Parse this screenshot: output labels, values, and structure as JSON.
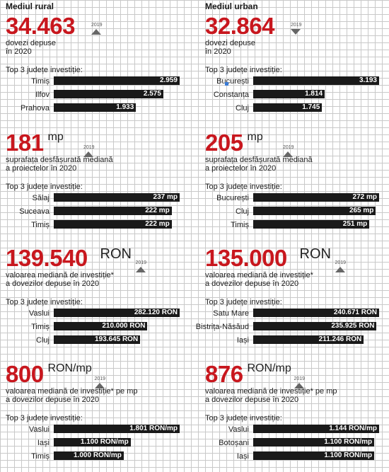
{
  "headers": {
    "left": "Mediul rural",
    "right": "Mediul urban"
  },
  "top3_label": "Top 3 județe investiție:",
  "year_ref": "2019",
  "chart_data": [
    {
      "type": "bar",
      "section": "rural",
      "metric": "dovezi depuse",
      "value": "34.463",
      "unit": "",
      "trend": "up",
      "desc1": "dovezi depuse",
      "desc2": "în 2020",
      "categories": [
        "Timiș",
        "Ilfov",
        "Prahova"
      ],
      "values": [
        2959,
        2575,
        1933
      ],
      "labels": [
        "2.959",
        "2.575",
        "1.933"
      ]
    },
    {
      "type": "bar",
      "section": "urban",
      "metric": "dovezi depuse",
      "value": "32.864",
      "unit": "",
      "trend": "down",
      "desc1": "dovezi depuse",
      "desc2": "în 2020",
      "categories": [
        "București",
        "Constanța",
        "Cluj"
      ],
      "values": [
        3193,
        1814,
        1745
      ],
      "labels": [
        "3.193",
        "1.814",
        "1.745"
      ]
    },
    {
      "type": "bar",
      "section": "rural",
      "value": "181",
      "unit": "mp",
      "trend": "up",
      "desc1": "suprafața desfășurată mediană",
      "desc2": "a proiectelor în 2020",
      "categories": [
        "Sălaj",
        "Suceava",
        "Timiș"
      ],
      "values": [
        237,
        222,
        222
      ],
      "labels": [
        "237 mp",
        "222 mp",
        "222 mp"
      ]
    },
    {
      "type": "bar",
      "section": "urban",
      "value": "205",
      "unit": "mp",
      "trend": "up",
      "desc1": "suprafața desfășurată mediană",
      "desc2": "a proiectelor în 2020",
      "categories": [
        "București",
        "Cluj",
        "Timiș"
      ],
      "values": [
        272,
        265,
        251
      ],
      "labels": [
        "272 mp",
        "265 mp",
        "251 mp"
      ]
    },
    {
      "type": "bar",
      "section": "rural",
      "value": "139.540",
      "unit": "RON",
      "trend": "up",
      "desc1": "valoarea mediană de investiție*",
      "desc2": "a dovezilor depuse în 2020",
      "categories": [
        "Vaslui",
        "Timiș",
        "Cluj"
      ],
      "values": [
        282120,
        210000,
        193645
      ],
      "labels": [
        "282.120 RON",
        "210.000 RON",
        "193.645 RON"
      ]
    },
    {
      "type": "bar",
      "section": "urban",
      "value": "135.000",
      "unit": "RON",
      "trend": "up",
      "desc1": "valoarea mediană de investiție*",
      "desc2": "a dovezilor depuse în 2020",
      "categories": [
        "Satu Mare",
        "Bistrița-Năsăud",
        "Iași"
      ],
      "values": [
        240671,
        235925,
        211246
      ],
      "labels": [
        "240.671 RON",
        "235.925 RON",
        "211.246 RON"
      ]
    },
    {
      "type": "bar",
      "section": "rural",
      "value": "800",
      "unit": "RON/mp",
      "trend": "up",
      "desc1": "valoarea mediană de investiție* pe mp",
      "desc2": "a dovezilor depuse în 2020",
      "categories": [
        "Vaslui",
        "Iași",
        "Timiș"
      ],
      "values": [
        1801,
        1100,
        1000
      ],
      "labels": [
        "1.801 RON/mp",
        "1.100 RON/mp",
        "1.000 RON/mp"
      ]
    },
    {
      "type": "bar",
      "section": "urban",
      "value": "876",
      "unit": "RON/mp",
      "trend": "up",
      "desc1": "valoarea mediană de investiție* pe mp",
      "desc2": "a dovezilor depuse în 2020",
      "categories": [
        "Vaslui",
        "Botoșani",
        "Iași"
      ],
      "values": [
        1144,
        1100,
        1100
      ],
      "labels": [
        "1.144 RON/mp",
        "1.100 RON/mp",
        "1.100 RON/mp"
      ]
    }
  ]
}
